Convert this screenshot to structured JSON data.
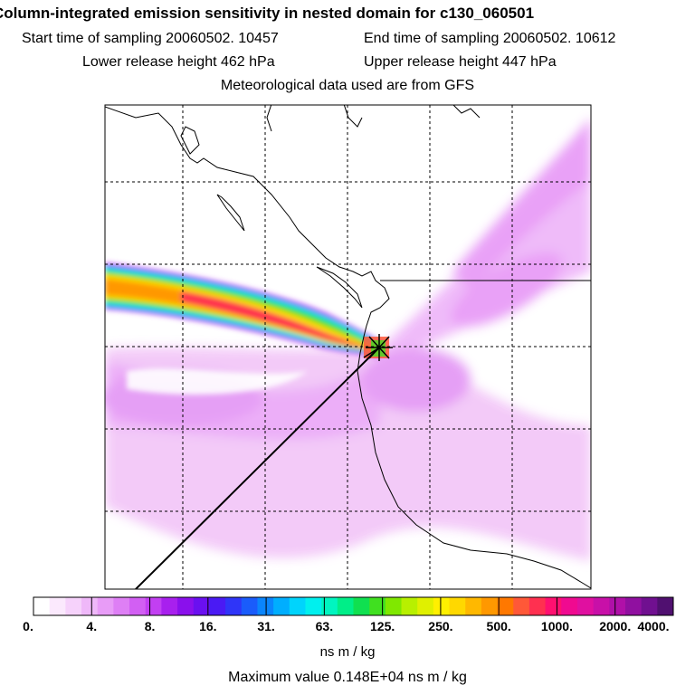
{
  "header": {
    "title": "Column-integrated emission sensitivity in nested domain for c130_060501",
    "start_sampling": "Start time of sampling 20060502. 10457",
    "end_sampling": "End time of sampling 20060502. 10612",
    "lower_release": "Lower release height  462 hPa",
    "upper_release": "Upper release height  447 hPa",
    "met_data": "Meteorological data used are from GFS"
  },
  "chart_data": {
    "type": "heatmap",
    "title": "Column-integrated emission sensitivity in nested domain for c130_060501",
    "colorbar": {
      "label": "ns m / kg",
      "tick_labels": [
        "0.",
        "4.",
        "8.",
        "16.",
        "31.",
        "63.",
        "125.",
        "250.",
        "500.",
        "1000.",
        "2000.",
        "4000."
      ],
      "tick_values": [
        0,
        4,
        8,
        16,
        31,
        63,
        125,
        250,
        500,
        1000,
        2000,
        4000
      ],
      "colors": [
        "#ffffff",
        "#fbe9fd",
        "#f6d2fb",
        "#efb8f9",
        "#e89cf7",
        "#de7ff5",
        "#d25ff3",
        "#c23ff2",
        "#a820ee",
        "#8a10ec",
        "#6a10f0",
        "#4a1af4",
        "#2f35f8",
        "#1a5cfb",
        "#0a85fd",
        "#00aefe",
        "#00d4fc",
        "#00f0ee",
        "#00f5c0",
        "#00ee88",
        "#10e050",
        "#40e020",
        "#80e800",
        "#b8f000",
        "#e0f000",
        "#fff000",
        "#ffd800",
        "#ffb800",
        "#ff9800",
        "#ff7800",
        "#ff5838",
        "#ff3050",
        "#ff1070",
        "#f00a90",
        "#e010a0",
        "#c810a8",
        "#b010a8",
        "#9010a0",
        "#701090",
        "#501070"
      ]
    },
    "max_value": "Maximum value  0.148E+04 ns m / kg",
    "release_marker": "release-location",
    "plume": {
      "description_values": "high sensitivity band extending west-northwest from release point",
      "peak": 1480
    }
  }
}
